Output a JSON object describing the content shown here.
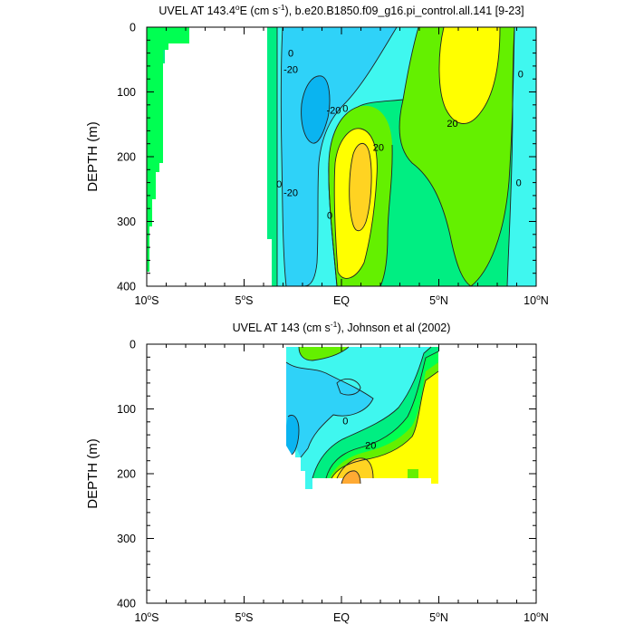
{
  "palette": {
    "neg30": "#0ab4f0",
    "neg20": "#2fd2f8",
    "neg10": "#3ff7ef",
    "zero": "#00ee82",
    "pos10": "#00ff52",
    "pos10b": "#64f000",
    "pos20": "#ffff00",
    "pos30": "#ffd322",
    "pos40": "#ffaa33",
    "land": "#ffffff"
  },
  "chart_data": [
    {
      "type": "contour",
      "title": "UVEL AT 143.4°E (cm s⁻¹), b.e20.B1850.f09_g16.pi_control.all.141 [9-23]",
      "title_parts": [
        "UVEL AT 143.4",
        "o",
        "E (cm s",
        "-1",
        "), b.e20.B1850.f09_g16.pi_control.all.141 [9-23]"
      ],
      "xlabel": "",
      "ylabel": "DEPTH (m)",
      "xlim": [
        -10,
        10
      ],
      "ylim": [
        400,
        0
      ],
      "x_ticks": [
        "10°S",
        "5°S",
        "EQ",
        "5°N",
        "10°N"
      ],
      "y_ticks": [
        "0",
        "100",
        "200",
        "300",
        "400"
      ],
      "contour_interval": 10,
      "contour_labels": [
        {
          "text": "-20",
          "lat": -2.6,
          "depth": 65
        },
        {
          "text": "-20",
          "lat": -0.4,
          "depth": 128
        },
        {
          "text": "-20",
          "lat": -2.6,
          "depth": 255
        },
        {
          "text": "0",
          "lat": -2.6,
          "depth": 40
        },
        {
          "text": "0",
          "lat": 0.2,
          "depth": 125
        },
        {
          "text": "0",
          "lat": -3.2,
          "depth": 242
        },
        {
          "text": "0",
          "lat": -0.6,
          "depth": 290
        },
        {
          "text": "20",
          "lat": 1.9,
          "depth": 185
        },
        {
          "text": "20",
          "lat": 5.7,
          "depth": 148
        },
        {
          "text": "0",
          "lat": 9.2,
          "depth": 72
        },
        {
          "text": "0",
          "lat": 9.1,
          "depth": 240
        }
      ],
      "features": [
        {
          "name": "westward undercurrent core",
          "min_value": -30,
          "lat": -1.4,
          "depth": 130
        },
        {
          "name": "equatorial undercurrent core",
          "max_value": 30,
          "lat": 1.0,
          "depth": 215
        },
        {
          "name": "north equatorial countercurrent",
          "max_value": 20,
          "lat": 6.0,
          "depth": 60
        }
      ]
    },
    {
      "type": "contour",
      "title": "UVEL AT 143 (cm s⁻¹), Johnson et al (2002)",
      "title_parts": [
        "UVEL AT 143 (cm s",
        "-1",
        "), Johnson et al (2002)"
      ],
      "xlabel": "",
      "ylabel": "DEPTH (m)",
      "xlim": [
        -10,
        10
      ],
      "ylim": [
        400,
        0
      ],
      "x_ticks": [
        "10°S",
        "5°S",
        "EQ",
        "5°N",
        "10°N"
      ],
      "y_ticks": [
        "0",
        "100",
        "200",
        "300",
        "400"
      ],
      "contour_interval": 10,
      "contour_labels": [
        {
          "text": "0",
          "lat": 0.2,
          "depth": 118
        },
        {
          "text": "20",
          "lat": 1.5,
          "depth": 156
        }
      ],
      "features": [
        {
          "name": "equatorial undercurrent core",
          "max_value": 40,
          "lat": 0.5,
          "depth": 205
        },
        {
          "name": "westward surface flow",
          "min_value": -30,
          "lat": -2.4,
          "depth": 150
        },
        {
          "name": "eastward near-surface flow",
          "max_value": 20,
          "lat": 4.5,
          "depth": 100
        }
      ]
    }
  ]
}
